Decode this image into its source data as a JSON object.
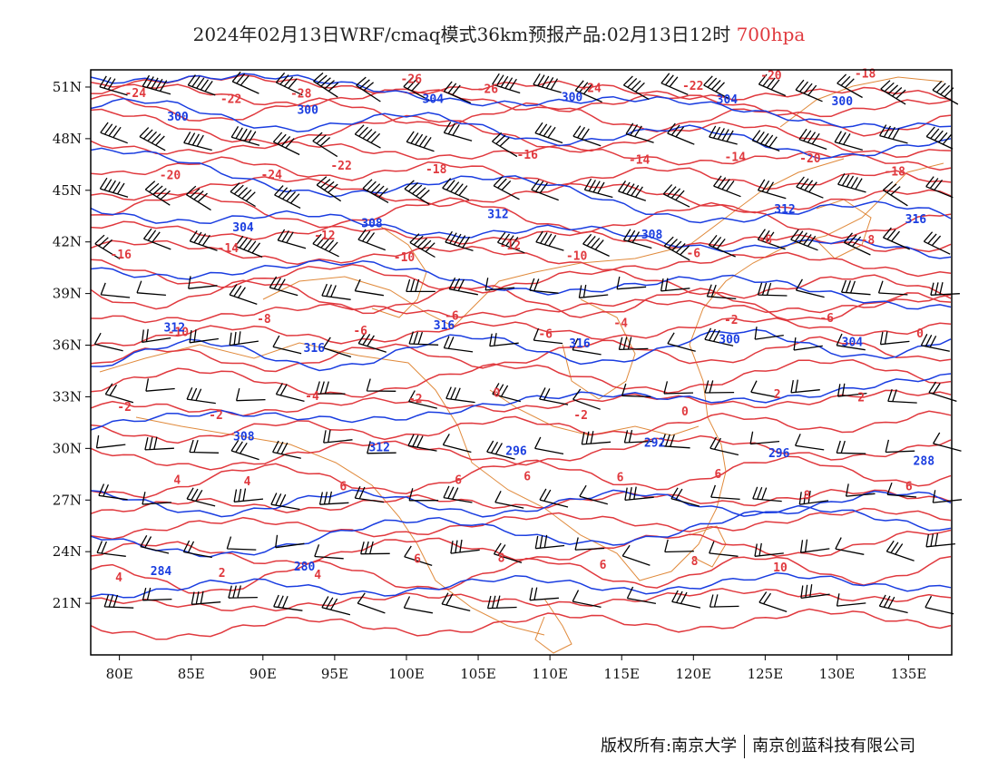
{
  "title": {
    "main": "2024年02月13日WRF/cmaq模式36km预报产品:02月13日12时",
    "level": "700hpa"
  },
  "colors": {
    "temperature": "#e0393e",
    "geopotential": "#1a3de0",
    "border": "#e08a3c",
    "wind": "#000000",
    "level_text": "#e0393e"
  },
  "map": {
    "lon_range": [
      78,
      138
    ],
    "lat_range": [
      18,
      52
    ],
    "x_ticks": [
      "80E",
      "85E",
      "90E",
      "95E",
      "100E",
      "105E",
      "110E",
      "115E",
      "120E",
      "125E",
      "130E",
      "135E"
    ],
    "y_ticks": [
      "51N",
      "48N",
      "45N",
      "42N",
      "39N",
      "36N",
      "33N",
      "30N",
      "27N",
      "24N",
      "21N"
    ]
  },
  "temperature_labels": [
    "-24",
    "-22",
    "-28",
    "-26",
    "-26",
    "-24",
    "-22",
    "-20",
    "-18",
    "-20",
    "-24",
    "-22",
    "-18",
    "-16",
    "-14",
    "-14",
    "-20",
    "-18",
    "-16",
    "-14",
    "-12",
    "-10",
    "-12",
    "-10",
    "-6",
    "-8",
    "-8",
    "-10",
    "-8",
    "-6",
    "-6",
    "-6",
    "-4",
    "-2",
    "-6",
    "0",
    "-2",
    "-2",
    "-4",
    "-2",
    "0",
    "-2",
    "0",
    "2",
    "2",
    "4",
    "4",
    "6",
    "6",
    "6",
    "6",
    "6",
    "8",
    "6",
    "4",
    "2",
    "4",
    "6",
    "8",
    "6",
    "8",
    "10"
  ],
  "geopotential_labels": [
    "300",
    "300",
    "304",
    "300",
    "304",
    "300",
    "304",
    "308",
    "312",
    "308",
    "312",
    "316",
    "312",
    "316",
    "316",
    "316",
    "300",
    "304",
    "308",
    "312",
    "296",
    "292",
    "296",
    "288",
    "284",
    "280"
  ],
  "footer": {
    "left": "版权所有:南京大学",
    "right": "南京创蓝科技有限公司"
  }
}
